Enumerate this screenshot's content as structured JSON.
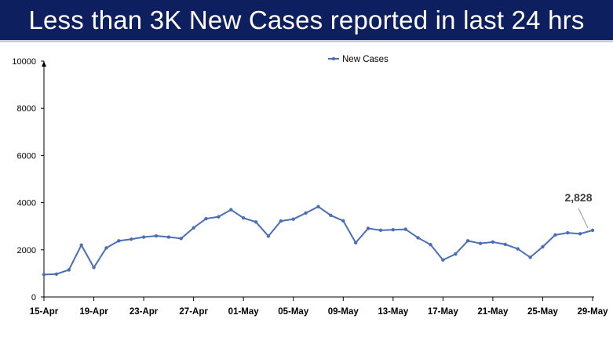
{
  "header": {
    "title": "Less than 3K New Cases reported in last 24 hrs",
    "background_color": "#0d1f5e"
  },
  "chart_data": {
    "type": "line",
    "legend_position": "top-center",
    "grid": false,
    "series": [
      {
        "name": "New Cases",
        "color": "#4a6fb5",
        "values": [
          950,
          970,
          1150,
          2200,
          1250,
          2080,
          2380,
          2450,
          2540,
          2590,
          2540,
          2480,
          2930,
          3320,
          3400,
          3700,
          3350,
          3180,
          2580,
          3220,
          3300,
          3560,
          3830,
          3460,
          3230,
          2300,
          2910,
          2830,
          2850,
          2870,
          2510,
          2220,
          1570,
          1820,
          2380,
          2270,
          2330,
          2230,
          2040,
          1680,
          2130,
          2630,
          2720,
          2680,
          2828
        ]
      }
    ],
    "x_start_label": "15-Apr",
    "x_tick_labels": [
      "15-Apr",
      "19-Apr",
      "23-Apr",
      "27-Apr",
      "01-May",
      "05-May",
      "09-May",
      "13-May",
      "17-May",
      "21-May",
      "25-May",
      "29-May"
    ],
    "y_ticks": [
      0,
      2000,
      4000,
      6000,
      8000,
      10000
    ],
    "ylim": [
      0,
      10000
    ],
    "annotation": {
      "text": "2,828",
      "point_index": 44
    }
  }
}
